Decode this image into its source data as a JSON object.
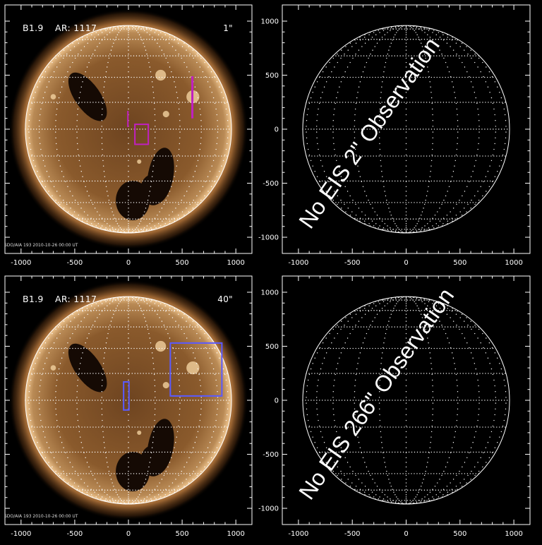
{
  "panels": [
    {
      "flare_label": "B1.9",
      "ar_label": "AR: 1117",
      "observation_label": "1\"",
      "observation_color": "#c020c0",
      "no_observation_text": "No EIS 2\" Observation",
      "timestamp": "SDO/AIA 193 2010-10-26 00:00 UT",
      "aia_boxes": [
        {
          "name": "slit-a",
          "x0": -5,
          "x1": -5,
          "y0": 20,
          "y1": 170
        },
        {
          "name": "raster-b",
          "x0": 60,
          "x1": 185,
          "y0": -140,
          "y1": 45
        },
        {
          "name": "slit-c",
          "x0": 595,
          "x1": 595,
          "y0": 100,
          "y1": 490
        }
      ]
    },
    {
      "flare_label": "B1.9",
      "ar_label": "AR: 1117",
      "observation_label": "40\"",
      "observation_color": "#5a5aff",
      "no_observation_text": "No EIS 266\" Observation",
      "timestamp": "SDO/AIA 193 2010-10-26 00:00 UT",
      "aia_boxes": [
        {
          "name": "raster-a",
          "x0": -45,
          "x1": 5,
          "y0": -90,
          "y1": 170
        },
        {
          "name": "raster-b",
          "x0": 390,
          "x1": 870,
          "y0": 40,
          "y1": 530
        }
      ]
    }
  ],
  "axes": {
    "x_ticks": [
      -1000,
      -500,
      0,
      500,
      1000
    ],
    "y_ticks": [
      -1000,
      -500,
      0,
      500,
      1000
    ],
    "range": [
      -1150,
      1150
    ]
  },
  "solar_radius_arcsec": 960,
  "colors": {
    "sun_core": "#8a5a2c",
    "sun_limb": "#f0c690",
    "grid": "#ffffff"
  }
}
